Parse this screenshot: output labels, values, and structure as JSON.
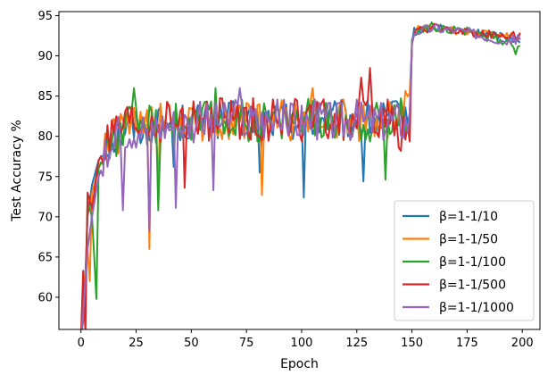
{
  "chart_data": {
    "type": "line",
    "xlabel": "Epoch",
    "ylabel": "Test Accuracy %",
    "xlim": [
      -10,
      208
    ],
    "ylim": [
      56,
      95.5
    ],
    "xticks": [
      0,
      25,
      50,
      75,
      100,
      125,
      150,
      175,
      200
    ],
    "yticks": [
      60,
      65,
      70,
      75,
      80,
      85,
      90,
      95
    ],
    "legend_position": "lower-right",
    "grid": false,
    "series": [
      {
        "name": "β=1-1/10",
        "color": "#1f77b4",
        "anchors": [
          [
            0,
            55
          ],
          [
            1,
            60
          ],
          [
            2,
            63
          ],
          [
            3,
            70
          ],
          [
            5,
            74
          ],
          [
            8,
            77
          ],
          [
            12,
            79
          ],
          [
            20,
            81
          ],
          [
            35,
            81.5
          ],
          [
            60,
            82
          ],
          [
            100,
            82
          ],
          [
            140,
            82
          ],
          [
            149,
            83
          ],
          [
            150,
            91.5
          ],
          [
            151,
            93
          ],
          [
            160,
            93.5
          ],
          [
            175,
            93
          ],
          [
            190,
            92.5
          ],
          [
            199,
            92
          ]
        ],
        "amp": 2.4,
        "late_amp": 0.5,
        "dips": [
          [
            101,
            72.4
          ],
          [
            128,
            74.4
          ],
          [
            42,
            76.2
          ],
          [
            81,
            75.5
          ]
        ]
      },
      {
        "name": "β=1-1/50",
        "color": "#ff7f0e",
        "anchors": [
          [
            0,
            55
          ],
          [
            1,
            59
          ],
          [
            2,
            63
          ],
          [
            3,
            66
          ],
          [
            5,
            73
          ],
          [
            8,
            76
          ],
          [
            12,
            79
          ],
          [
            20,
            81
          ],
          [
            35,
            81.5
          ],
          [
            60,
            82
          ],
          [
            100,
            82
          ],
          [
            140,
            82
          ],
          [
            149,
            84
          ],
          [
            150,
            91.5
          ],
          [
            151,
            93.2
          ],
          [
            160,
            93.5
          ],
          [
            175,
            93
          ],
          [
            190,
            92.5
          ],
          [
            199,
            92.5
          ]
        ],
        "amp": 2.6,
        "late_amp": 0.5,
        "dips": [
          [
            31,
            66
          ],
          [
            4,
            62
          ],
          [
            82,
            72.7
          ],
          [
            35,
            74
          ],
          [
            105,
            86
          ]
        ]
      },
      {
        "name": "β=1-1/100",
        "color": "#2ca02c",
        "anchors": [
          [
            0,
            55
          ],
          [
            1,
            57
          ],
          [
            2,
            60
          ],
          [
            3,
            72
          ],
          [
            5,
            70
          ],
          [
            7,
            60
          ],
          [
            8,
            76
          ],
          [
            12,
            79
          ],
          [
            20,
            81
          ],
          [
            35,
            81.5
          ],
          [
            60,
            82
          ],
          [
            100,
            82
          ],
          [
            140,
            82
          ],
          [
            149,
            83
          ],
          [
            150,
            92
          ],
          [
            151,
            93
          ],
          [
            160,
            93.7
          ],
          [
            175,
            93
          ],
          [
            190,
            92
          ],
          [
            199,
            91.5
          ]
        ],
        "amp": 2.7,
        "late_amp": 0.6,
        "dips": [
          [
            7,
            59.8
          ],
          [
            35,
            70.8
          ],
          [
            24,
            86
          ],
          [
            61,
            86
          ],
          [
            138,
            74.6
          ],
          [
            197,
            90.2
          ]
        ]
      },
      {
        "name": "β=1-1/500",
        "color": "#d62728",
        "anchors": [
          [
            0,
            55
          ],
          [
            1,
            63
          ],
          [
            2,
            55
          ],
          [
            3,
            73
          ],
          [
            5,
            71
          ],
          [
            8,
            77
          ],
          [
            12,
            79
          ],
          [
            20,
            81
          ],
          [
            35,
            81.5
          ],
          [
            60,
            82
          ],
          [
            100,
            82
          ],
          [
            140,
            82
          ],
          [
            149,
            80
          ],
          [
            150,
            91.5
          ],
          [
            151,
            93
          ],
          [
            160,
            93.5
          ],
          [
            175,
            93
          ],
          [
            190,
            92.5
          ],
          [
            199,
            92.5
          ]
        ],
        "amp": 2.8,
        "late_amp": 0.5,
        "dips": [
          [
            1,
            63.3
          ],
          [
            2,
            55.5
          ],
          [
            47,
            73.6
          ],
          [
            127,
            87.3
          ],
          [
            131,
            88.5
          ]
        ]
      },
      {
        "name": "β=1-1/1000",
        "color": "#9467bd",
        "anchors": [
          [
            0,
            55
          ],
          [
            1,
            58
          ],
          [
            2,
            62
          ],
          [
            3,
            66
          ],
          [
            5,
            70
          ],
          [
            8,
            75
          ],
          [
            12,
            78
          ],
          [
            20,
            81
          ],
          [
            35,
            81.5
          ],
          [
            60,
            82
          ],
          [
            100,
            82
          ],
          [
            140,
            82
          ],
          [
            149,
            82
          ],
          [
            150,
            91.5
          ],
          [
            151,
            93
          ],
          [
            160,
            93.5
          ],
          [
            175,
            93
          ],
          [
            190,
            92
          ],
          [
            199,
            92
          ]
        ],
        "amp": 2.6,
        "late_amp": 0.6,
        "dips": [
          [
            19,
            70.8
          ],
          [
            43,
            71.1
          ],
          [
            60,
            73.3
          ],
          [
            72,
            86
          ],
          [
            31,
            68.2
          ]
        ]
      }
    ]
  }
}
